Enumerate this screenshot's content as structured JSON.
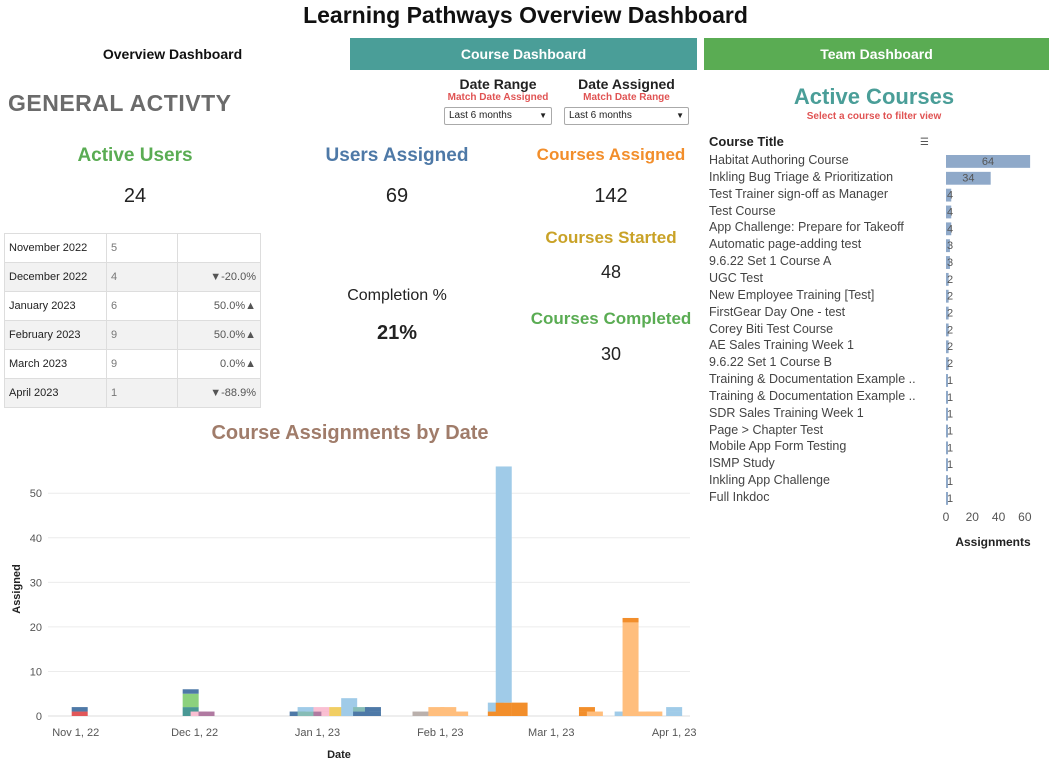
{
  "title": "Learning Pathways Overview Dashboard",
  "tabs": {
    "overview": "Overview Dashboard",
    "course": "Course Dashboard",
    "team": "Team Dashboard"
  },
  "section_title": "GENERAL ACTIVTY",
  "filters": {
    "date_range": {
      "title": "Date Range",
      "subtitle": "Match Date Assigned",
      "value": "Last 6 months"
    },
    "date_assigned": {
      "title": "Date Assigned",
      "subtitle": "Match Date Range",
      "value": "Last 6 months"
    }
  },
  "kpis": {
    "active_users": {
      "label": "Active Users",
      "value": "24",
      "color": "#5aac53"
    },
    "users_assigned": {
      "label": "Users Assigned",
      "value": "69",
      "color": "#4e79a7"
    },
    "courses_assigned": {
      "label": "Courses Assigned",
      "value": "142",
      "color": "#f28e2b"
    },
    "courses_started": {
      "label": "Courses Started",
      "value": "48",
      "color": "#c9a227"
    },
    "courses_completed": {
      "label": "Courses Completed",
      "value": "30",
      "color": "#5aac53"
    },
    "completion": {
      "label": "Completion %",
      "value": "21%"
    }
  },
  "monthly": [
    {
      "month": "November 2022",
      "count": "5",
      "change": ""
    },
    {
      "month": "December 2022",
      "count": "4",
      "change": "▼-20.0%"
    },
    {
      "month": "January 2023",
      "count": "6",
      "change": "50.0%▲"
    },
    {
      "month": "February 2023",
      "count": "9",
      "change": "50.0%▲"
    },
    {
      "month": "March 2023",
      "count": "9",
      "change": "0.0%▲"
    },
    {
      "month": "April 2023",
      "count": "1",
      "change": "▼-88.9%"
    }
  ],
  "active_courses": {
    "title": "Active Courses",
    "subtitle": "Select a course to filter view",
    "column_header": "Course Title",
    "axis_label": "Assignments",
    "bar_color": "#8fa9c9"
  },
  "chart_data": [
    {
      "type": "bar",
      "orientation": "horizontal",
      "title": "",
      "xlabel": "Assignments",
      "ylabel": "Course Title",
      "xlim": [
        0,
        70
      ],
      "xticks": [
        "0",
        "20",
        "40",
        "60"
      ],
      "categories": [
        "Habitat Authoring Course",
        "Inkling Bug Triage & Prioritization",
        "Test Trainer sign-off as Manager",
        "Test Course",
        "App Challenge: Prepare for Takeoff",
        "Automatic page-adding test",
        "9.6.22 Set 1 Course A",
        "UGC Test",
        "New Employee Training [Test]",
        "FirstGear Day One - test",
        "Corey Biti Test Course",
        "AE Sales Training Week 1",
        "9.6.22 Set 1 Course B",
        "Training & Documentation Example ..",
        "Training & Documentation Example ..",
        "SDR Sales Training Week 1",
        "Page > Chapter Test",
        "Mobile App Form Testing",
        "ISMP Study",
        "Inkling App Challenge",
        "Full Inkdoc"
      ],
      "values": [
        64,
        34,
        4,
        4,
        4,
        3,
        3,
        2,
        2,
        2,
        2,
        2,
        2,
        1,
        1,
        1,
        1,
        1,
        1,
        1,
        1
      ],
      "value_labels": [
        "64",
        "34",
        "4",
        "4",
        "4",
        "3",
        "3",
        "2",
        "2",
        "2",
        "2",
        "2",
        "2",
        "1",
        "1",
        "1",
        "1",
        "1",
        "1",
        "1",
        "1"
      ]
    },
    {
      "type": "bar",
      "orientation": "vertical",
      "stacked": true,
      "title": "Course Assignments by Date",
      "xlabel": "Date",
      "ylabel": "Assigned",
      "ylim": [
        0,
        57
      ],
      "yticks": [
        "0",
        "10",
        "20",
        "30",
        "40",
        "50"
      ],
      "xlim": [
        "2022-10-25",
        "2023-04-05"
      ],
      "xticks": [
        {
          "date": "2022-11-01",
          "label": "Nov 1, 22"
        },
        {
          "date": "2022-12-01",
          "label": "Dec 1, 22"
        },
        {
          "date": "2023-01-01",
          "label": "Jan 1, 23"
        },
        {
          "date": "2023-02-01",
          "label": "Feb 1, 23"
        },
        {
          "date": "2023-03-01",
          "label": "Mar 1, 23"
        },
        {
          "date": "2023-04-01",
          "label": "Apr 1, 23"
        }
      ],
      "grid": true,
      "bars": [
        {
          "date": "2022-11-02",
          "segments": [
            {
              "value": 1,
              "color": "#e15759"
            },
            {
              "value": 1,
              "color": "#4e79a7"
            }
          ]
        },
        {
          "date": "2022-11-30",
          "segments": [
            {
              "value": 2,
              "color": "#499894"
            },
            {
              "value": 3,
              "color": "#8cd17d"
            },
            {
              "value": 1,
              "color": "#4e79a7"
            }
          ]
        },
        {
          "date": "2022-12-02",
          "segments": [
            {
              "value": 1,
              "color": "#fabfd2"
            }
          ]
        },
        {
          "date": "2022-12-04",
          "segments": [
            {
              "value": 1,
              "color": "#b07aa1"
            }
          ]
        },
        {
          "date": "2022-12-27",
          "segments": [
            {
              "value": 1,
              "color": "#4e79a7"
            }
          ]
        },
        {
          "date": "2022-12-29",
          "segments": [
            {
              "value": 1,
              "color": "#86bcb6"
            },
            {
              "value": 1,
              "color": "#a0cbe8"
            }
          ]
        },
        {
          "date": "2023-01-02",
          "segments": [
            {
              "value": 1,
              "color": "#b07aa1"
            },
            {
              "value": 1,
              "color": "#fabfd2"
            }
          ]
        },
        {
          "date": "2023-01-04",
          "segments": [
            {
              "value": 1,
              "color": "#fabfd2"
            }
          ]
        },
        {
          "date": "2023-01-06",
          "segments": [
            {
              "value": 2,
              "color": "#f1ce63"
            }
          ]
        },
        {
          "date": "2023-01-09",
          "segments": [
            {
              "value": 4,
              "color": "#a0cbe8"
            }
          ]
        },
        {
          "date": "2023-01-12",
          "segments": [
            {
              "value": 1,
              "color": "#4e79a7"
            },
            {
              "value": 1,
              "color": "#86bcb6"
            }
          ]
        },
        {
          "date": "2023-01-15",
          "segments": [
            {
              "value": 1,
              "color": "#4e79a7"
            },
            {
              "value": 1,
              "color": "#4e79a7"
            }
          ]
        },
        {
          "date": "2023-01-27",
          "segments": [
            {
              "value": 1,
              "color": "#bab0ac"
            }
          ]
        },
        {
          "date": "2023-01-31",
          "segments": [
            {
              "value": 2,
              "color": "#ffbe7d"
            }
          ]
        },
        {
          "date": "2023-02-03",
          "segments": [
            {
              "value": 2,
              "color": "#ffbe7d"
            }
          ]
        },
        {
          "date": "2023-02-06",
          "segments": [
            {
              "value": 1,
              "color": "#ffbe7d"
            }
          ]
        },
        {
          "date": "2023-02-15",
          "segments": [
            {
              "value": 1,
              "color": "#f28e2b"
            },
            {
              "value": 2,
              "color": "#a0cbe8"
            }
          ]
        },
        {
          "date": "2023-02-17",
          "segments": [
            {
              "value": 3,
              "color": "#f28e2b"
            },
            {
              "value": 53,
              "color": "#a0cbe8"
            }
          ]
        },
        {
          "date": "2023-02-21",
          "segments": [
            {
              "value": 3,
              "color": "#f28e2b"
            }
          ]
        },
        {
          "date": "2023-03-10",
          "segments": [
            {
              "value": 1,
              "color": "#f28e2b"
            },
            {
              "value": 1,
              "color": "#f28e2b"
            }
          ]
        },
        {
          "date": "2023-03-12",
          "segments": [
            {
              "value": 1,
              "color": "#ffbe7d"
            }
          ]
        },
        {
          "date": "2023-03-19",
          "segments": [
            {
              "value": 1,
              "color": "#a0cbe8"
            }
          ]
        },
        {
          "date": "2023-03-21",
          "segments": [
            {
              "value": 21,
              "color": "#ffbe7d"
            },
            {
              "value": 1,
              "color": "#f28e2b"
            }
          ]
        },
        {
          "date": "2023-03-24",
          "segments": [
            {
              "value": 1,
              "color": "#ffbe7d"
            }
          ]
        },
        {
          "date": "2023-03-27",
          "segments": [
            {
              "value": 1,
              "color": "#ffbe7d"
            }
          ]
        },
        {
          "date": "2023-04-01",
          "segments": [
            {
              "value": 1,
              "color": "#a0cbe8"
            },
            {
              "value": 1,
              "color": "#a0cbe8"
            }
          ]
        }
      ]
    }
  ]
}
